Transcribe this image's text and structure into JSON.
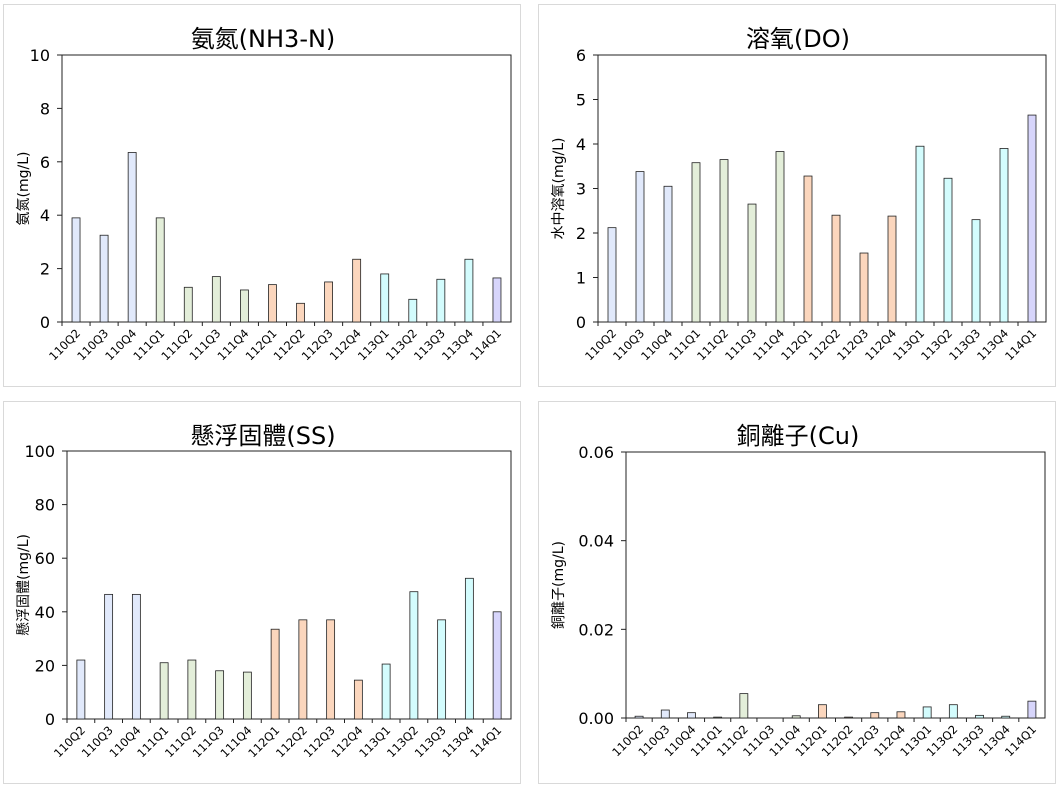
{
  "colors": {
    "110": "#e1e9fb",
    "111": "#e3eed9",
    "112": "#fbd6bd",
    "113": "#d3fcfd",
    "114": "#d7d5fb",
    "bar_stroke": "#222222",
    "axis": "#222222"
  },
  "chart_data": [
    {
      "type": "bar",
      "title": "氨氮(NH3-N)",
      "ylabel": "氨氮(mg/L)",
      "xlabel": "",
      "categories": [
        "110Q2",
        "110Q3",
        "110Q4",
        "111Q1",
        "111Q2",
        "111Q3",
        "111Q4",
        "112Q1",
        "112Q2",
        "112Q3",
        "112Q4",
        "113Q1",
        "113Q2",
        "113Q3",
        "113Q4",
        "114Q1"
      ],
      "values": [
        3.9,
        3.25,
        6.35,
        3.9,
        1.3,
        1.7,
        1.2,
        1.4,
        0.7,
        1.5,
        2.35,
        1.8,
        0.85,
        1.6,
        2.35,
        1.65
      ],
      "ylim": [
        0,
        10
      ],
      "yticks": [
        "0",
        "2",
        "4",
        "6",
        "8",
        "10"
      ],
      "grid": false,
      "legend": "none"
    },
    {
      "type": "bar",
      "title": "溶氧(DO)",
      "ylabel": "水中溶氧(mg/L)",
      "xlabel": "",
      "categories": [
        "110Q2",
        "110Q3",
        "110Q4",
        "111Q1",
        "111Q2",
        "111Q3",
        "111Q4",
        "112Q1",
        "112Q2",
        "112Q3",
        "112Q4",
        "113Q1",
        "113Q2",
        "113Q3",
        "113Q4",
        "114Q1"
      ],
      "values": [
        2.12,
        3.38,
        3.05,
        3.58,
        3.65,
        2.65,
        3.83,
        3.28,
        2.4,
        1.55,
        2.38,
        3.95,
        3.23,
        2.3,
        3.9,
        4.65
      ],
      "ylim": [
        0,
        6
      ],
      "yticks": [
        "0",
        "1",
        "2",
        "3",
        "4",
        "5",
        "6"
      ],
      "grid": false,
      "legend": "none"
    },
    {
      "type": "bar",
      "title": "懸浮固體(SS)",
      "ylabel": "懸浮固體(mg/L)",
      "xlabel": "",
      "categories": [
        "110Q2",
        "110Q3",
        "110Q4",
        "111Q1",
        "111Q2",
        "111Q3",
        "111Q4",
        "112Q1",
        "112Q2",
        "112Q3",
        "112Q4",
        "113Q1",
        "113Q2",
        "113Q3",
        "113Q4",
        "114Q1"
      ],
      "values": [
        22,
        46.5,
        46.5,
        21,
        22,
        18,
        17.5,
        33.5,
        37,
        37,
        14.5,
        20.5,
        47.5,
        37,
        52.5,
        40
      ],
      "ylim": [
        0,
        100
      ],
      "yticks": [
        "0",
        "20",
        "40",
        "60",
        "80",
        "100"
      ],
      "grid": false,
      "legend": "none"
    },
    {
      "type": "bar",
      "title": "銅離子(Cu)",
      "ylabel": "銅離子(mg/L)",
      "xlabel": "",
      "categories": [
        "110Q2",
        "110Q3",
        "110Q4",
        "111Q1",
        "111Q2",
        "111Q3",
        "111Q4",
        "112Q1",
        "112Q2",
        "112Q3",
        "112Q4",
        "113Q1",
        "113Q2",
        "113Q3",
        "113Q4",
        "114Q1"
      ],
      "values": [
        0.0004,
        0.0018,
        0.0012,
        0.0002,
        0.0055,
        0.0,
        0.0005,
        0.003,
        0.0002,
        0.0012,
        0.0014,
        0.0025,
        0.003,
        0.0006,
        0.0004,
        0.0038
      ],
      "ylim": [
        0,
        0.06
      ],
      "yticks": [
        "0.00",
        "0.02",
        "0.04",
        "0.06"
      ],
      "grid": false,
      "legend": "none"
    }
  ]
}
